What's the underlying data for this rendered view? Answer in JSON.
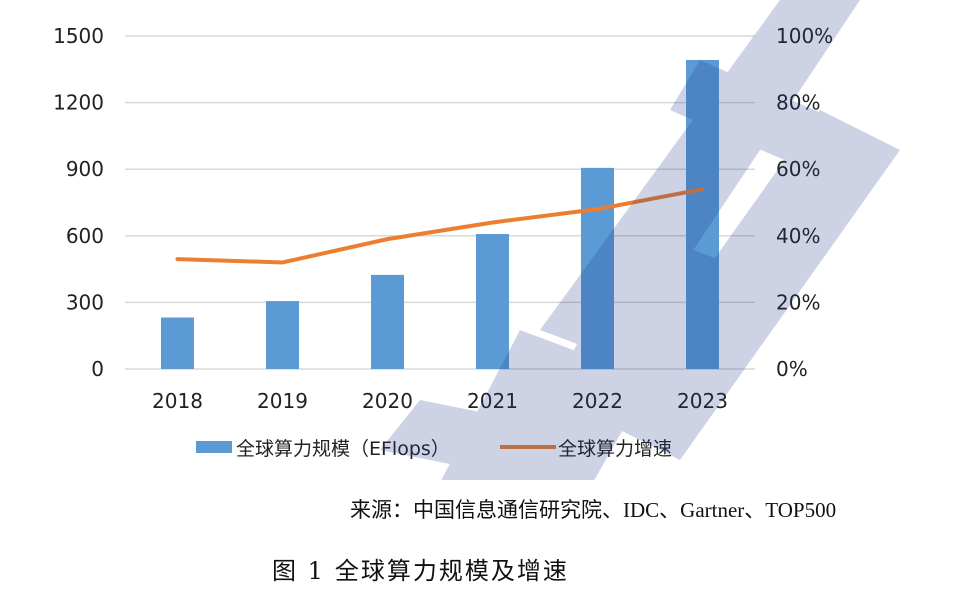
{
  "chart_data": {
    "type": "bar+line",
    "title": "",
    "categories": [
      "2018",
      "2019",
      "2020",
      "2021",
      "2022",
      "2023"
    ],
    "series": [
      {
        "name": "全球算力规模（EFlops）",
        "type": "bar",
        "axis": "left",
        "values": [
          232,
          306,
          424,
          608,
          906,
          1392
        ],
        "color": "#5b9bd5"
      },
      {
        "name": "全球算力增速",
        "type": "line",
        "axis": "right",
        "values": [
          33,
          32,
          39,
          44,
          48,
          54
        ],
        "color": "#ed7d31"
      }
    ],
    "left_axis": {
      "ylim": [
        0,
        1500
      ],
      "ticks": [
        "0",
        "300",
        "600",
        "900",
        "1200",
        "1500"
      ]
    },
    "right_axis": {
      "ylim": [
        0,
        100
      ],
      "unit": "%",
      "ticks": [
        "0%",
        "20%",
        "40%",
        "60%",
        "80%",
        "100%"
      ]
    },
    "xlabel": "",
    "ylabel": "",
    "grid": true,
    "legend_position": "bottom"
  },
  "source_text": "来源：中国信息通信研究院、IDC、Gartner、TOP500",
  "caption": {
    "label": "图 1",
    "text": "全球算力规模及增速"
  }
}
